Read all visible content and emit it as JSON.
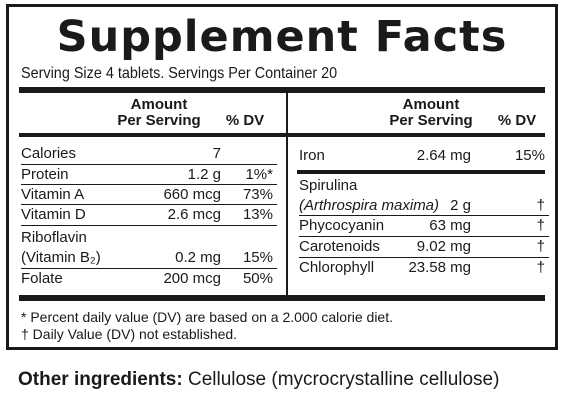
{
  "title": "Supplement Facts",
  "serving": "Serving Size 4 tablets. Servings Per Container 20",
  "headers": {
    "amount_line1": "Amount",
    "amount_line2": "Per Serving",
    "dv": "% DV"
  },
  "left_rows": [
    {
      "name": "Calories",
      "amount": "7",
      "dv": ""
    },
    {
      "name": "Protein",
      "amount": "1.2 g",
      "dv": "1%*"
    },
    {
      "name": "Vitamin A",
      "amount": "660 mcg",
      "dv": "73%"
    },
    {
      "name": "Vitamin D",
      "amount": "2.6 mcg",
      "dv": "13%"
    },
    {
      "name": "Riboflavin",
      "name2": "(Vitamin B₂)",
      "amount": "0.2 mg",
      "dv": "15%"
    },
    {
      "name": "Folate",
      "amount": "200 mcg",
      "dv": "50%"
    }
  ],
  "right_rows": [
    {
      "name": "Iron",
      "amount": "2.64 mg",
      "dv": "15%"
    },
    {
      "name": "Spirulina",
      "name2": "(Arthrospira maxima)",
      "amount": "2 g",
      "dv": "†"
    },
    {
      "name": "Phycocyanin",
      "amount": "63 mg",
      "dv": "†"
    },
    {
      "name": "Carotenoids",
      "amount": "9.02 mg",
      "dv": "†"
    },
    {
      "name": "Chlorophyll",
      "amount": "23.58 mg",
      "dv": "†"
    }
  ],
  "footnotes": [
    "* Percent daily value (DV) are based on a 2.000 calorie diet.",
    "† Daily Value (DV) not established."
  ],
  "other_ingredients": {
    "label": "Other ingredients:",
    "text": " Cellulose (mycrocrystalline cellulose)"
  }
}
